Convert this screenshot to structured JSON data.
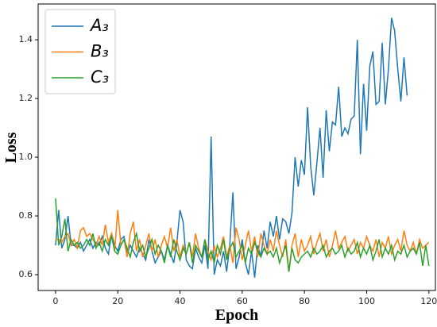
{
  "chart_data": {
    "type": "line",
    "xlabel": "Epoch",
    "ylabel": "Loss",
    "x": [
      0,
      1,
      2,
      3,
      4,
      5,
      6,
      7,
      8,
      9,
      10,
      11,
      12,
      13,
      14,
      15,
      16,
      17,
      18,
      19,
      20,
      21,
      22,
      23,
      24,
      25,
      26,
      27,
      28,
      29,
      30,
      31,
      32,
      33,
      34,
      35,
      36,
      37,
      38,
      39,
      40,
      41,
      42,
      43,
      44,
      45,
      46,
      47,
      48,
      49,
      50,
      51,
      52,
      53,
      54,
      55,
      56,
      57,
      58,
      59,
      60,
      61,
      62,
      63,
      64,
      65,
      66,
      67,
      68,
      69,
      70,
      71,
      72,
      73,
      74,
      75,
      76,
      77,
      78,
      79,
      80,
      81,
      82,
      83,
      84,
      85,
      86,
      87,
      88,
      89,
      90,
      91,
      92,
      93,
      94,
      95,
      96,
      97,
      98,
      99,
      100,
      101,
      102,
      103,
      104,
      105,
      106,
      107,
      108,
      109,
      110,
      111,
      112,
      113,
      114,
      115,
      116,
      117,
      118,
      119,
      120
    ],
    "series": [
      {
        "name": "A₃",
        "color": "#1f77b4",
        "values": [
          0.7,
          0.82,
          0.69,
          0.72,
          0.8,
          0.7,
          0.7,
          0.69,
          0.71,
          0.68,
          0.7,
          0.72,
          0.69,
          0.71,
          0.7,
          0.73,
          0.69,
          0.67,
          0.74,
          0.7,
          0.68,
          0.72,
          0.73,
          0.67,
          0.7,
          0.68,
          0.66,
          0.69,
          0.67,
          0.65,
          0.72,
          0.68,
          0.64,
          0.66,
          0.68,
          0.65,
          0.7,
          0.67,
          0.64,
          0.71,
          0.82,
          0.78,
          0.65,
          0.63,
          0.62,
          0.69,
          0.66,
          0.64,
          0.7,
          0.62,
          1.07,
          0.6,
          0.65,
          0.63,
          0.68,
          0.61,
          0.7,
          0.88,
          0.62,
          0.66,
          0.72,
          0.64,
          0.6,
          0.68,
          0.59,
          0.7,
          0.66,
          0.75,
          0.69,
          0.78,
          0.73,
          0.8,
          0.72,
          0.79,
          0.78,
          0.74,
          0.81,
          1.0,
          0.9,
          0.99,
          0.94,
          1.17,
          0.97,
          0.87,
          0.98,
          1.1,
          0.93,
          1.16,
          1.02,
          1.12,
          1.11,
          1.24,
          1.07,
          1.1,
          1.08,
          1.13,
          1.14,
          1.4,
          1.01,
          1.25,
          1.09,
          1.31,
          1.36,
          1.18,
          1.19,
          1.39,
          1.18,
          1.3,
          1.475,
          1.43,
          1.3,
          1.19,
          1.34,
          1.21,
          null,
          null,
          null,
          null,
          null,
          null,
          null
        ]
      },
      {
        "name": "B₃",
        "color": "#ff7f0e",
        "values": [
          0.72,
          0.72,
          0.71,
          0.73,
          0.74,
          0.7,
          0.72,
          0.69,
          0.75,
          0.76,
          0.73,
          0.74,
          0.72,
          0.7,
          0.73,
          0.7,
          0.77,
          0.71,
          0.74,
          0.68,
          0.82,
          0.7,
          0.72,
          0.66,
          0.74,
          0.78,
          0.68,
          0.72,
          0.66,
          0.7,
          0.74,
          0.68,
          0.72,
          0.66,
          0.7,
          0.73,
          0.69,
          0.76,
          0.68,
          0.72,
          0.66,
          0.7,
          0.67,
          0.71,
          0.66,
          0.74,
          0.69,
          0.66,
          0.72,
          0.68,
          0.65,
          0.7,
          0.66,
          0.69,
          0.73,
          0.66,
          0.7,
          0.64,
          0.76,
          0.72,
          0.65,
          0.7,
          0.75,
          0.68,
          0.73,
          0.66,
          0.74,
          0.7,
          0.67,
          0.72,
          0.68,
          0.75,
          0.7,
          0.66,
          0.72,
          0.61,
          0.7,
          0.74,
          0.66,
          0.72,
          0.68,
          0.7,
          0.73,
          0.67,
          0.71,
          0.74,
          0.68,
          0.72,
          0.66,
          0.7,
          0.75,
          0.69,
          0.71,
          0.73,
          0.68,
          0.7,
          0.72,
          0.67,
          0.71,
          0.69,
          0.73,
          0.7,
          0.68,
          0.72,
          0.66,
          0.71,
          0.69,
          0.73,
          0.67,
          0.7,
          0.72,
          0.68,
          0.75,
          0.7,
          0.68,
          0.71,
          0.67,
          0.72,
          0.69,
          0.7,
          0.71
        ]
      },
      {
        "name": "C₃",
        "color": "#2ca02c",
        "values": [
          0.86,
          0.7,
          0.73,
          0.79,
          0.68,
          0.72,
          0.7,
          0.71,
          0.69,
          0.7,
          0.72,
          0.7,
          0.74,
          0.69,
          0.71,
          0.68,
          0.72,
          0.7,
          0.73,
          0.68,
          0.67,
          0.7,
          0.72,
          0.69,
          0.66,
          0.71,
          0.74,
          0.68,
          0.7,
          0.66,
          0.69,
          0.72,
          0.67,
          0.7,
          0.68,
          0.64,
          0.7,
          0.66,
          0.72,
          0.68,
          0.65,
          0.69,
          0.67,
          0.71,
          0.64,
          0.7,
          0.68,
          0.66,
          0.72,
          0.65,
          0.68,
          0.64,
          0.7,
          0.67,
          0.72,
          0.65,
          0.69,
          0.71,
          0.66,
          0.68,
          0.7,
          0.64,
          0.69,
          0.67,
          0.71,
          0.68,
          0.66,
          0.69,
          0.67,
          0.68,
          0.66,
          0.69,
          0.64,
          0.67,
          0.7,
          0.61,
          0.69,
          0.65,
          0.64,
          0.66,
          0.67,
          0.68,
          0.66,
          0.69,
          0.67,
          0.68,
          0.7,
          0.66,
          0.68,
          0.69,
          0.67,
          0.68,
          0.7,
          0.66,
          0.69,
          0.67,
          0.68,
          0.71,
          0.66,
          0.69,
          0.67,
          0.7,
          0.65,
          0.68,
          0.72,
          0.66,
          0.69,
          0.67,
          0.7,
          0.65,
          0.68,
          0.67,
          0.7,
          0.66,
          0.68,
          0.69,
          0.67,
          0.71,
          0.63,
          0.7,
          0.63
        ]
      }
    ],
    "xlim": [
      -5.6,
      122.1
    ],
    "xticks": [
      0,
      20,
      40,
      60,
      80,
      100,
      120
    ],
    "ylim": [
      0.546,
      1.522
    ],
    "yticks": [
      0.6,
      0.8,
      {
        "value": 1,
        "label": "1.0"
      },
      1.2,
      1.4
    ],
    "legend": "upper left"
  }
}
